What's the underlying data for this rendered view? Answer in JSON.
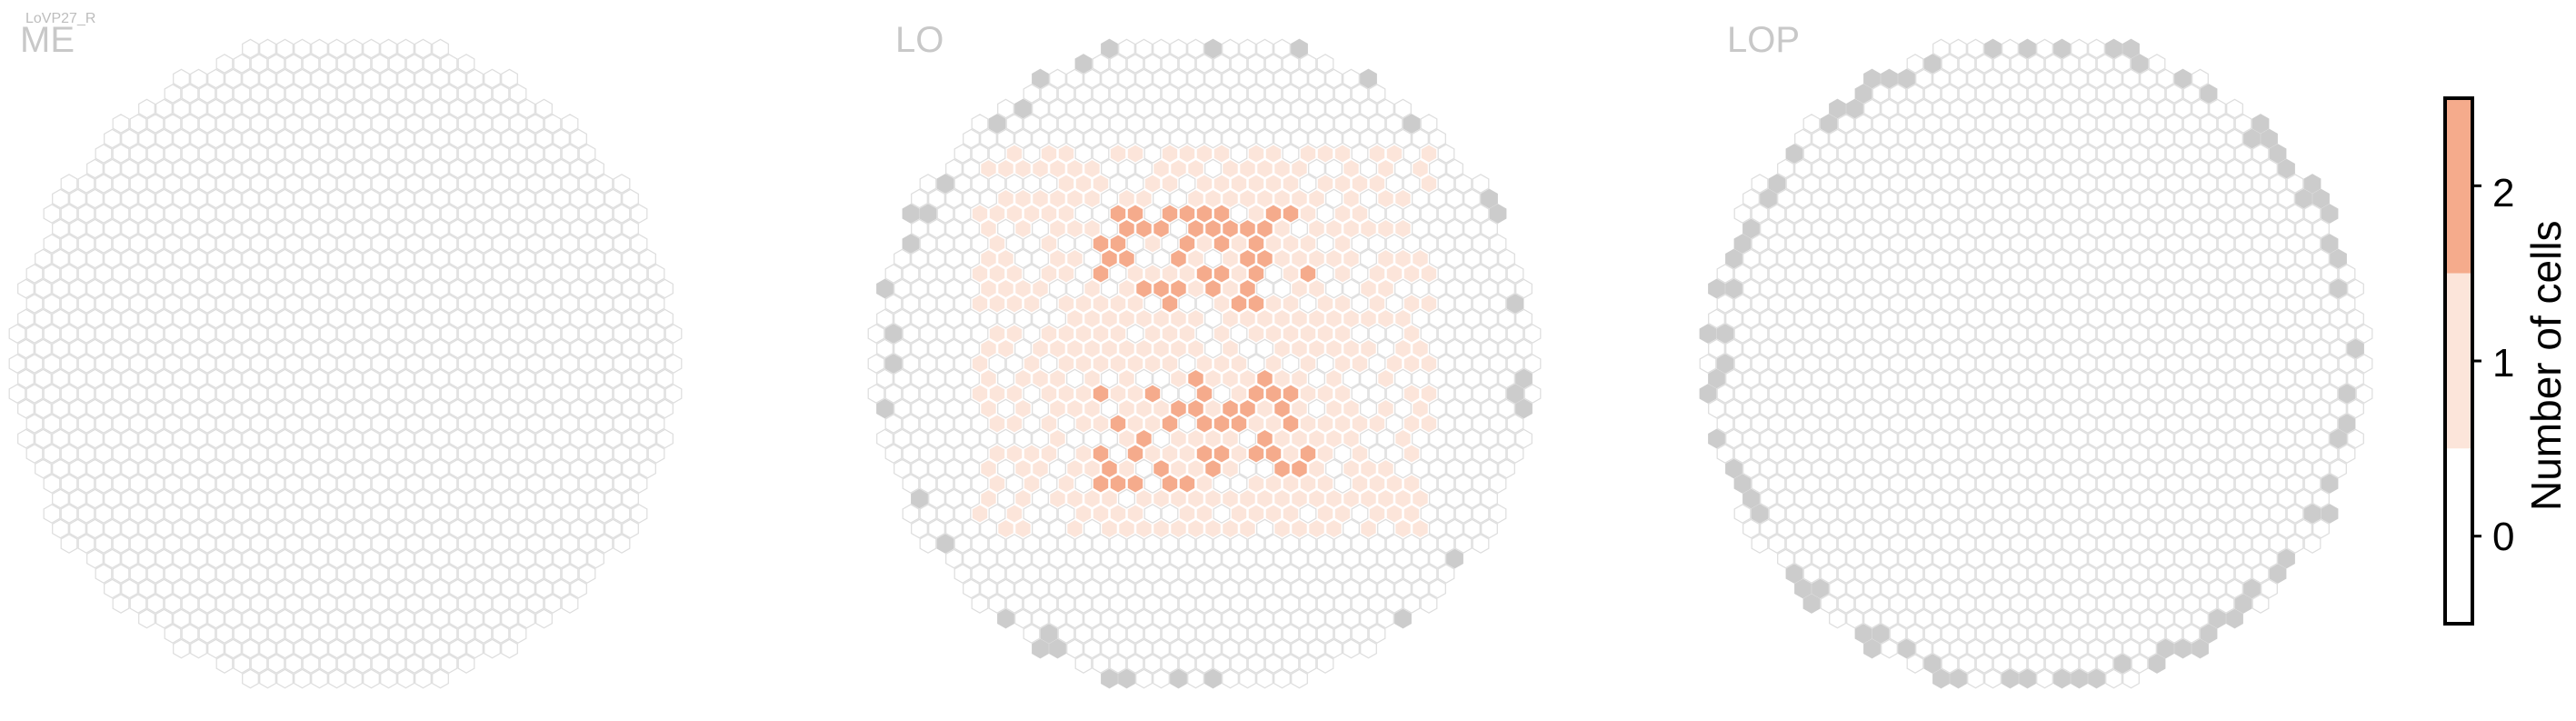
{
  "figure": {
    "subtitle": "LoVP27_R"
  },
  "chart_data": {
    "type": "heatmap",
    "subtitle": "LoVP27_R",
    "panels": [
      {
        "name": "ME",
        "summary": {
          "count_0": 771,
          "count_1": 0,
          "count_2": 0,
          "outside_grey": 0
        }
      },
      {
        "name": "LO",
        "summary": {
          "count_1": 200,
          "count_2": 45,
          "outside_grey": 26
        }
      },
      {
        "name": "LOP",
        "summary": {
          "count_1": 0,
          "count_2": 0,
          "outside_grey": 60
        }
      }
    ],
    "colorbar": {
      "label": "Number of cells",
      "ticks": [
        "0",
        "1",
        "2"
      ],
      "range": [
        -0.5,
        2.5
      ],
      "colors": {
        "0": "#ffffff",
        "1": "#fce5da",
        "2": "#f5ab8c"
      }
    },
    "colors": {
      "empty_hex_fill": "#ffffff",
      "hex_stroke": "#dddddd",
      "outside_grey": "#cccccc",
      "value_1": "#fce5da",
      "value_2": "#f5ab8c"
    }
  }
}
